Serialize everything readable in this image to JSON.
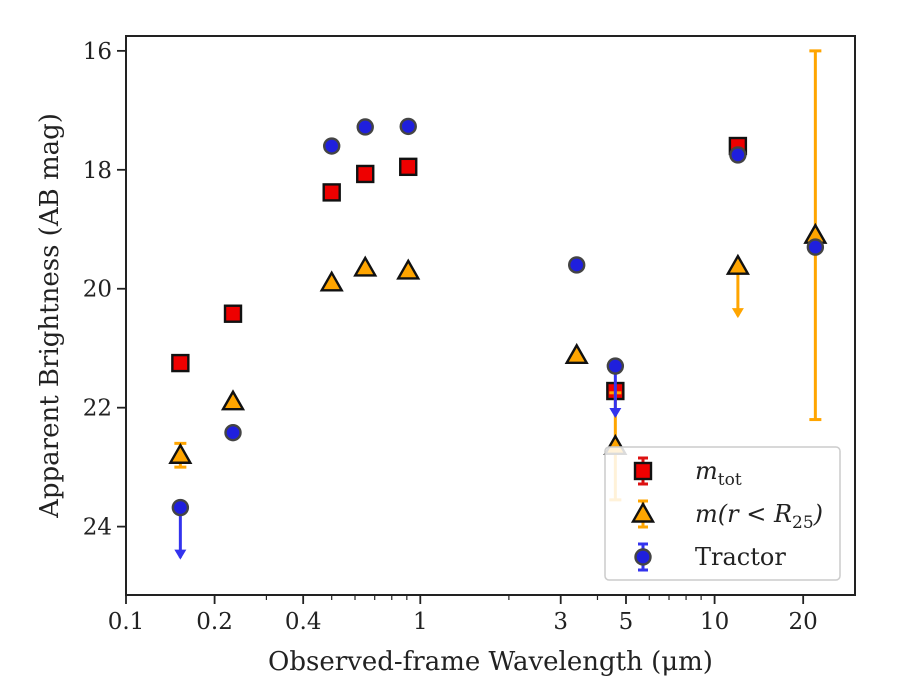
{
  "chart_data": {
    "type": "scatter",
    "xlabel": "Observed-frame Wavelength (μm)",
    "ylabel": "Apparent Brightness (AB mag)",
    "x_scale": "log",
    "y_inverted": true,
    "xlim": [
      0.1,
      30
    ],
    "ylim": [
      25.15,
      15.75
    ],
    "x_ticks": [
      0.1,
      0.2,
      0.4,
      1,
      3,
      5,
      10,
      20
    ],
    "x_tick_labels": [
      "0.1",
      "0.2",
      "0.4",
      "1",
      "3",
      "5",
      "10",
      "20"
    ],
    "y_ticks": [
      16,
      18,
      20,
      22,
      24
    ],
    "y_tick_labels": [
      "16",
      "18",
      "20",
      "22",
      "24"
    ],
    "grid": false,
    "legend_position": "lower-right",
    "series": [
      {
        "name": "m_tot",
        "marker": "square",
        "color": "#ee0000",
        "errorbar_color": "#dd1111",
        "points": [
          {
            "x": 0.153,
            "y": 21.25
          },
          {
            "x": 0.231,
            "y": 20.42
          },
          {
            "x": 0.5,
            "y": 18.38
          },
          {
            "x": 0.65,
            "y": 18.07
          },
          {
            "x": 0.91,
            "y": 17.95
          },
          {
            "x": 12.0,
            "y": 17.6
          },
          {
            "x": 4.6,
            "y": 21.72
          }
        ]
      },
      {
        "name": "m(r < R25)",
        "marker": "triangle",
        "color": "#ffa500",
        "errorbar_color": "#ffa500",
        "points": [
          {
            "x": 0.153,
            "y": 22.8,
            "yerr": [
              0.2,
              0.2
            ]
          },
          {
            "x": 0.231,
            "y": 21.9
          },
          {
            "x": 0.5,
            "y": 19.9
          },
          {
            "x": 0.65,
            "y": 19.65
          },
          {
            "x": 0.91,
            "y": 19.7
          },
          {
            "x": 3.4,
            "y": 21.12
          },
          {
            "x": 4.6,
            "y": 22.65,
            "yerr": [
              0.9,
              0.9
            ]
          },
          {
            "x": 12.0,
            "y": 19.62,
            "upper_limit": true
          },
          {
            "x": 22.0,
            "y": 19.1,
            "yerr": [
              3.1,
              3.1
            ]
          }
        ]
      },
      {
        "name": "Tractor",
        "marker": "circle",
        "color": "#1f1fdd",
        "errorbar_color": "#3333ee",
        "points": [
          {
            "x": 0.153,
            "y": 23.68,
            "upper_limit": true
          },
          {
            "x": 0.231,
            "y": 22.42
          },
          {
            "x": 0.5,
            "y": 17.6
          },
          {
            "x": 0.65,
            "y": 17.28
          },
          {
            "x": 0.91,
            "y": 17.27
          },
          {
            "x": 3.4,
            "y": 19.6
          },
          {
            "x": 4.6,
            "y": 21.3,
            "upper_limit": true
          },
          {
            "x": 12.0,
            "y": 17.75
          },
          {
            "x": 22.0,
            "y": 19.3
          }
        ]
      }
    ],
    "legend": [
      {
        "series": 0,
        "label_main": "m",
        "label_sub": "tot",
        "label_tail": ""
      },
      {
        "series": 1,
        "label_main": "m(r < R",
        "label_sub": "25",
        "label_tail": ")"
      },
      {
        "series": 2,
        "label_main": "Tractor",
        "label_sub": "",
        "label_tail": ""
      }
    ]
  }
}
